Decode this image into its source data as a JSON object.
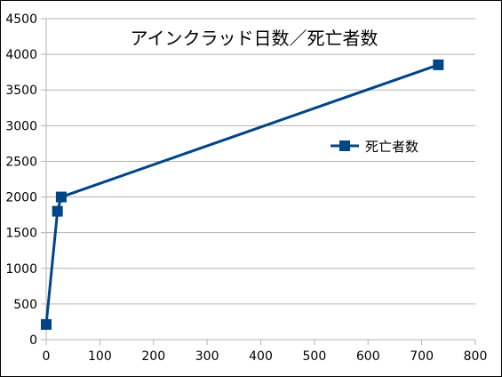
{
  "chart_data": {
    "type": "scatter",
    "title": "アインクラッド日数／死亡者数",
    "xlabel": "",
    "ylabel": "",
    "xlim": [
      0,
      800
    ],
    "ylim": [
      0,
      4500
    ],
    "x_ticks": [
      0,
      100,
      200,
      300,
      400,
      500,
      600,
      700,
      800
    ],
    "y_ticks": [
      0,
      500,
      1000,
      1500,
      2000,
      2500,
      3000,
      3500,
      4000,
      4500
    ],
    "grid": "horizontal",
    "legend_position": "right",
    "series": [
      {
        "name": "死亡者数",
        "color": "#004586",
        "marker": "square",
        "line": true,
        "points": [
          {
            "x": 0,
            "y": 213
          },
          {
            "x": 21,
            "y": 1800
          },
          {
            "x": 28,
            "y": 2000
          },
          {
            "x": 731,
            "y": 3853
          }
        ]
      }
    ]
  }
}
